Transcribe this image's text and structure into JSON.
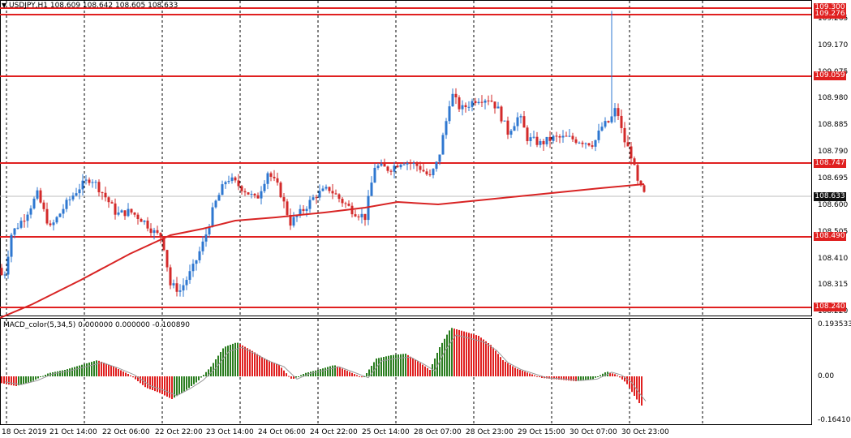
{
  "symbol_header": "USDJPY,H1  108.609 108.642 108.605 108.633",
  "macd_header": "MACD_color(5,34,5) 0.000000 0.000000 -0.100890",
  "colors": {
    "bull": "#2e77d0",
    "bear": "#d32a2a",
    "level_line": "#e02020",
    "ma_line": "#d82424",
    "macd_up": "#2a7d1f",
    "macd_down": "#e02020",
    "current_tag": "#111111",
    "grid": "#000000"
  },
  "price_axis": {
    "ticks": [
      "109.265",
      "109.170",
      "109.075",
      "108.980",
      "108.885",
      "108.790",
      "108.695",
      "108.600",
      "108.505",
      "108.410",
      "108.315",
      "108.220"
    ]
  },
  "level_tags": [
    "109.300",
    "109.276",
    "109.059",
    "108.747",
    "108.490",
    "108.240"
  ],
  "current_price": "108.633",
  "macd_axis": {
    "ticks": [
      "0.193533",
      "0.00",
      "-0.164107"
    ]
  },
  "time_axis": {
    "labels": [
      "18 Oct 2019",
      "21 Oct 14:00",
      "22 Oct 06:00",
      "22 Oct 22:00",
      "23 Oct 14:00",
      "24 Oct 06:00",
      "24 Oct 22:00",
      "25 Oct 14:00",
      "28 Oct 07:00",
      "28 Oct 23:00",
      "29 Oct 15:00",
      "30 Oct 07:00",
      "30 Oct 23:00"
    ]
  }
}
